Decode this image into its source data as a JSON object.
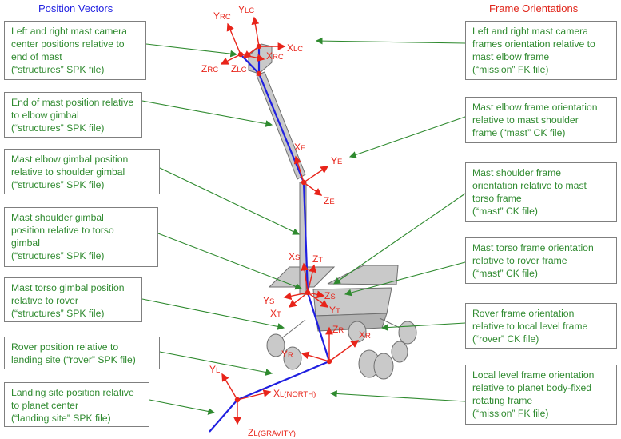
{
  "headers": {
    "left": "Position Vectors",
    "right": "Frame Orientations"
  },
  "left_boxes": [
    "Left and right mast camera\ncenter positions relative to\nend of mast\n(“structures” SPK file)",
    "End of mast position relative\nto elbow gimbal\n(“structures” SPK file)",
    "Mast elbow gimbal position\nrelative to shoulder gimbal\n(“structures” SPK file)",
    "Mast shoulder gimbal\nposition relative to torso\ngimbal\n(“structures” SPK file)",
    "Mast torso gimbal position\nrelative to rover\n(“structures” SPK file)",
    "Rover position relative to\nlanding site (“rover” SPK file)",
    "Landing site position relative\nto planet center\n(“landing site” SPK file)"
  ],
  "right_boxes": [
    "Left and right mast camera\nframes orientation relative to\nmast elbow frame\n(“mission” FK file)",
    "Mast elbow frame orientation\nrelative to mast shoulder\nframe (“mast” CK file)",
    "Mast shoulder frame\norientation relative to mast\ntorso frame\n(“mast” CK file)",
    "Mast torso frame orientation\nrelative to rover frame\n(“mast” CK file)",
    "Rover frame orientation\nrelative to local level frame\n(“rover” CK file)",
    "Local level frame orientation\nrelative to planet body-fixed\nrotating frame\n(“mission” FK file)"
  ],
  "axis_labels": {
    "y_rc": {
      "main": "Y",
      "sub": "RC"
    },
    "y_lc": {
      "main": "Y",
      "sub": "LC"
    },
    "x_lc": {
      "main": "X",
      "sub": "LC"
    },
    "x_rc": {
      "main": "X",
      "sub": "RC"
    },
    "z_rc": {
      "main": "Z",
      "sub": "RC"
    },
    "z_lc": {
      "main": "Z",
      "sub": "LC"
    },
    "x_e": {
      "main": "X",
      "sub": "E"
    },
    "y_e": {
      "main": "Y",
      "sub": "E"
    },
    "z_e": {
      "main": "Z",
      "sub": "E"
    },
    "x_s": {
      "main": "X",
      "sub": "S"
    },
    "z_t": {
      "main": "Z",
      "sub": "T"
    },
    "y_s": {
      "main": "Y",
      "sub": "S"
    },
    "z_s": {
      "main": "Z",
      "sub": "S"
    },
    "x_t": {
      "main": "X",
      "sub": "T"
    },
    "y_t": {
      "main": "Y",
      "sub": "T"
    },
    "z_r": {
      "main": "Z",
      "sub": "R"
    },
    "x_r": {
      "main": "X",
      "sub": "R"
    },
    "y_r": {
      "main": "Y",
      "sub": "R"
    },
    "y_l": {
      "main": "Y",
      "sub": "L"
    },
    "x_l": {
      "main": "X",
      "sub": "L(NORTH)"
    },
    "z_l": {
      "main": "Z",
      "sub": "L(GRAVITY)"
    }
  },
  "colors": {
    "position_vector": "#1f1fe0",
    "frame_axis": "#e8241a",
    "callout_text": "#2f8a2f",
    "rover_fill": "#c9c9c9"
  }
}
